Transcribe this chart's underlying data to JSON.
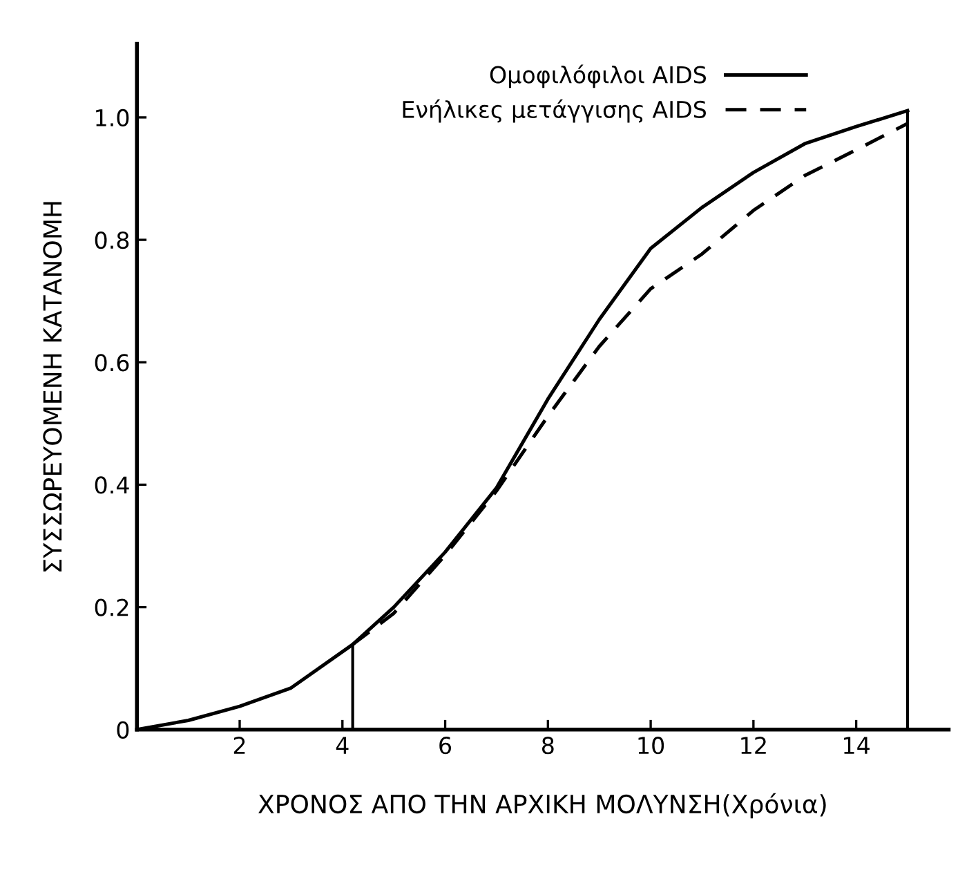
{
  "chart_data": {
    "type": "line",
    "xlabel": "ΧΡΟΝΟΣ ΑΠΟ ΤΗΝ ΑΡΧΙΚΗ ΜΟΛΥΝΣΗ(Χρόνια)",
    "ylabel": "ΣΥΣΣΩΡΕΥΟΜΕΝΗ ΚΑΤΑΝΟΜΗ",
    "legend": "top right",
    "grid": false,
    "xlim": [
      0,
      15.8
    ],
    "ylim": [
      0,
      1.12
    ],
    "xticks": [
      2,
      4,
      6,
      8,
      10,
      12,
      14
    ],
    "yticks": [
      0,
      0.2,
      0.4,
      0.6,
      0.8,
      {
        "value": 1.0,
        "label": "1.0"
      }
    ],
    "series": [
      {
        "name": "Ομοφιλόφιλοι AIDS",
        "color": "#000000",
        "line_style": "solid",
        "x": [
          0,
          1,
          2,
          3,
          4.2,
          5,
          6,
          7,
          8,
          9,
          10,
          11,
          12,
          13,
          14,
          15
        ],
        "values": [
          0,
          0.015,
          0.038,
          0.068,
          0.139,
          0.2,
          0.29,
          0.395,
          0.54,
          0.67,
          0.786,
          0.853,
          0.91,
          0.957,
          0.985,
          1.011
        ]
      },
      {
        "name": "Ενήλικες μετάγγισης AIDS",
        "color": "#000000",
        "line_style": "dashed",
        "x": [
          4.2,
          5,
          6,
          7,
          8,
          9,
          10,
          11,
          12,
          13,
          14,
          15
        ],
        "values": [
          0.139,
          0.19,
          0.285,
          0.39,
          0.512,
          0.626,
          0.72,
          0.777,
          0.848,
          0.905,
          0.947,
          0.99
        ]
      }
    ],
    "ref_lines": [
      {
        "axis": "x",
        "value": 4.2,
        "color": "#000000"
      },
      {
        "axis": "x",
        "value": 15,
        "color": "#000000"
      }
    ]
  }
}
